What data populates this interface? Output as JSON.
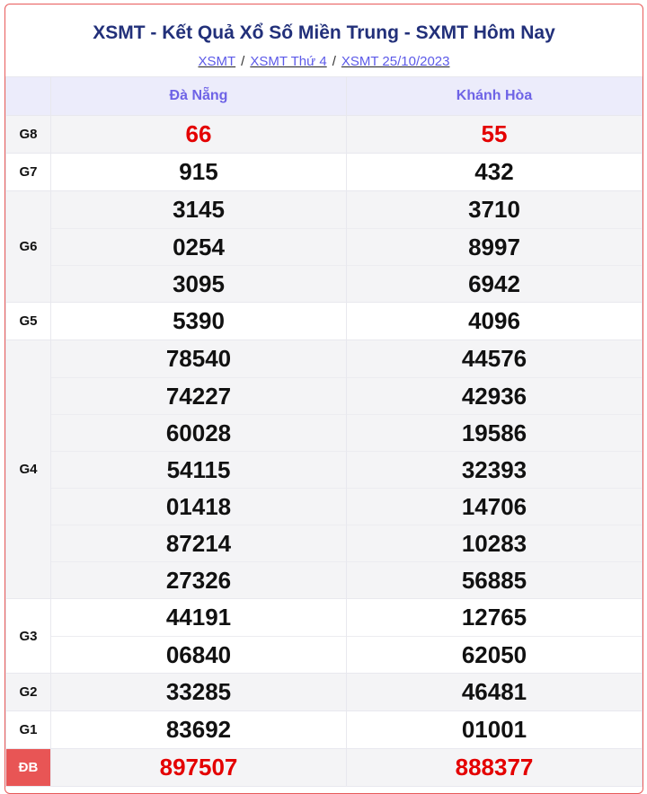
{
  "title": "XSMT - Kết Quả Xổ Số Miền Trung - SXMT Hôm Nay",
  "breadcrumb": [
    "XSMT",
    "XSMT Thứ 4",
    "XSMT 25/10/2023"
  ],
  "breadcrumb_separator": "/",
  "columns": [
    "Đà Nẵng",
    "Khánh Hòa"
  ],
  "colors": {
    "accent": "#6e63e6",
    "special": "#e40000",
    "title": "#22307a",
    "db_badge": "#e85555"
  },
  "prizes": [
    {
      "label": "G8",
      "values": [
        [
          "66"
        ],
        [
          "55"
        ]
      ],
      "highlight": true
    },
    {
      "label": "G7",
      "values": [
        [
          "915"
        ],
        [
          "432"
        ]
      ]
    },
    {
      "label": "G6",
      "values": [
        [
          "3145",
          "0254",
          "3095"
        ],
        [
          "3710",
          "8997",
          "6942"
        ]
      ]
    },
    {
      "label": "G5",
      "values": [
        [
          "5390"
        ],
        [
          "4096"
        ]
      ]
    },
    {
      "label": "G4",
      "values": [
        [
          "78540",
          "74227",
          "60028",
          "54115",
          "01418",
          "87214",
          "27326"
        ],
        [
          "44576",
          "42936",
          "19586",
          "32393",
          "14706",
          "10283",
          "56885"
        ]
      ]
    },
    {
      "label": "G3",
      "values": [
        [
          "44191",
          "06840"
        ],
        [
          "12765",
          "62050"
        ]
      ]
    },
    {
      "label": "G2",
      "values": [
        [
          "33285"
        ],
        [
          "46481"
        ]
      ]
    },
    {
      "label": "G1",
      "values": [
        [
          "83692"
        ],
        [
          "01001"
        ]
      ]
    },
    {
      "label": "ĐB",
      "values": [
        [
          "897507"
        ],
        [
          "888377"
        ]
      ],
      "highlight": true,
      "special": true
    }
  ]
}
